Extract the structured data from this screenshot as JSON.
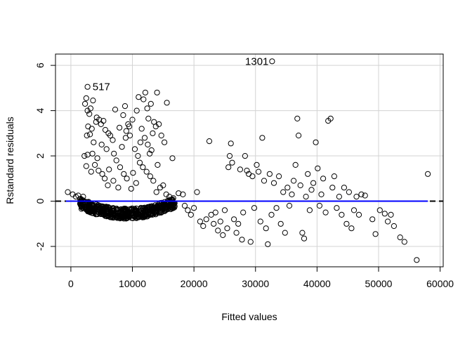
{
  "chart_data": {
    "type": "scatter",
    "title": "",
    "xlabel": "Fitted values",
    "ylabel": "Rstandard residuals",
    "xlim": [
      -2500,
      60500
    ],
    "ylim": [
      -2.9,
      6.5
    ],
    "x_ticks": [
      0,
      10000,
      20000,
      30000,
      40000,
      50000,
      60000
    ],
    "x_tick_labels": [
      "0",
      "10000",
      "20000",
      "30000",
      "40000",
      "50000",
      "60000"
    ],
    "y_ticks": [
      -2,
      0,
      2,
      4,
      6
    ],
    "y_tick_labels": [
      "-2",
      "0",
      "2",
      "4",
      "6"
    ],
    "grid": true,
    "reference_line": {
      "y": 0,
      "style": "dashed",
      "color": "#000000"
    },
    "smooth_line": {
      "color": "#0000ff",
      "y": 0
    },
    "annotations": [
      {
        "text": "517",
        "x": 2950,
        "y": 5.05
      },
      {
        "text": "1301",
        "x": 32700,
        "y": 6.18
      }
    ],
    "colors": {
      "points": "#000000",
      "smooth": "#0000ff",
      "grid": "#d3d3d3"
    },
    "series": [
      {
        "points": [
          [
            2700,
            5.05
          ],
          [
            32700,
            6.18
          ],
          [
            2300,
            4.3
          ],
          [
            2700,
            4.0
          ],
          [
            3200,
            4.1
          ],
          [
            3600,
            4.45
          ],
          [
            2500,
            4.55
          ],
          [
            3000,
            3.85
          ],
          [
            2800,
            3.3
          ],
          [
            3400,
            3.2
          ],
          [
            4200,
            3.7
          ],
          [
            2600,
            2.9
          ],
          [
            3100,
            2.95
          ],
          [
            3700,
            2.6
          ],
          [
            4100,
            3.5
          ],
          [
            4600,
            3.6
          ],
          [
            4900,
            3.4
          ],
          [
            5300,
            3.55
          ],
          [
            5600,
            3.15
          ],
          [
            6100,
            3.0
          ],
          [
            2200,
            2.0
          ],
          [
            2700,
            2.05
          ],
          [
            3500,
            2.1
          ],
          [
            4300,
            1.9
          ],
          [
            5000,
            2.5
          ],
          [
            5800,
            2.3
          ],
          [
            6400,
            2.9
          ],
          [
            6800,
            2.7
          ],
          [
            2500,
            1.55
          ],
          [
            3300,
            1.3
          ],
          [
            3900,
            1.6
          ],
          [
            4500,
            1.35
          ],
          [
            5100,
            1.2
          ],
          [
            5500,
            1.0
          ],
          [
            6200,
            1.4
          ],
          [
            7000,
            2.1
          ],
          [
            7400,
            1.8
          ],
          [
            8000,
            1.5
          ],
          [
            8600,
            1.2
          ],
          [
            9100,
            1.0
          ],
          [
            6000,
            0.7
          ],
          [
            6900,
            0.9
          ],
          [
            7700,
            0.6
          ],
          [
            8500,
            3.8
          ],
          [
            9000,
            3.1
          ],
          [
            9500,
            3.3
          ],
          [
            10000,
            3.6
          ],
          [
            9600,
            2.9
          ],
          [
            10400,
            2.3
          ],
          [
            10900,
            2.0
          ],
          [
            11300,
            2.6
          ],
          [
            11800,
            4.5
          ],
          [
            12100,
            4.8
          ],
          [
            11000,
            4.6
          ],
          [
            10700,
            4.0
          ],
          [
            12400,
            4.1
          ],
          [
            13000,
            4.3
          ],
          [
            13500,
            3.5
          ],
          [
            14000,
            4.8
          ],
          [
            11500,
            3.2
          ],
          [
            12000,
            2.8
          ],
          [
            12500,
            2.5
          ],
          [
            12800,
            2.1
          ],
          [
            13300,
            3.0
          ],
          [
            13800,
            3.3
          ],
          [
            14300,
            3.4
          ],
          [
            14700,
            2.9
          ],
          [
            15200,
            2.6
          ],
          [
            15600,
            4.35
          ],
          [
            16500,
            1.9
          ],
          [
            11200,
            1.7
          ],
          [
            11700,
            1.5
          ],
          [
            12300,
            1.3
          ],
          [
            12900,
            1.1
          ],
          [
            13400,
            0.9
          ],
          [
            10100,
            1.25
          ],
          [
            9800,
            0.55
          ],
          [
            10600,
            0.8
          ],
          [
            13900,
            0.4
          ],
          [
            14500,
            0.6
          ],
          [
            15000,
            0.7
          ],
          [
            15500,
            0.3
          ],
          [
            16000,
            0.2
          ],
          [
            7200,
            4.05
          ],
          [
            7900,
            3.25
          ],
          [
            8800,
            4.2
          ],
          [
            9300,
            3.4
          ],
          [
            12600,
            3.65
          ],
          [
            13100,
            2.25
          ],
          [
            14100,
            1.6
          ],
          [
            8300,
            2.4
          ],
          [
            8900,
            2.8
          ],
          [
            -500,
            0.4
          ],
          [
            300,
            0.3
          ],
          [
            800,
            0.2
          ],
          [
            1200,
            0.25
          ],
          [
            1500,
            0.1
          ],
          [
            1700,
            0.05
          ],
          [
            2000,
            0.2
          ],
          [
            17500,
            0.35
          ],
          [
            18200,
            0.3
          ],
          [
            18500,
            -0.2
          ],
          [
            19000,
            -0.4
          ],
          [
            19500,
            -0.6
          ],
          [
            20000,
            -0.3
          ],
          [
            20500,
            0.4
          ],
          [
            21000,
            -0.9
          ],
          [
            21500,
            -1.1
          ],
          [
            22000,
            -0.8
          ],
          [
            22500,
            2.65
          ],
          [
            22800,
            -0.6
          ],
          [
            23200,
            -1.0
          ],
          [
            23500,
            -0.5
          ],
          [
            23900,
            -1.3
          ],
          [
            24300,
            -0.9
          ],
          [
            24700,
            -1.5
          ],
          [
            25000,
            -0.4
          ],
          [
            25400,
            -1.2
          ],
          [
            25600,
            1.5
          ],
          [
            25800,
            2.0
          ],
          [
            26000,
            2.55
          ],
          [
            26200,
            1.7
          ],
          [
            26500,
            -0.8
          ],
          [
            26900,
            -1.4
          ],
          [
            27200,
            -1.0
          ],
          [
            27500,
            1.4
          ],
          [
            27800,
            -1.7
          ],
          [
            28000,
            -0.5
          ],
          [
            28300,
            2.0
          ],
          [
            28600,
            1.35
          ],
          [
            28900,
            1.2
          ],
          [
            29200,
            -1.8
          ],
          [
            29500,
            1.1
          ],
          [
            29800,
            -0.3
          ],
          [
            30200,
            1.6
          ],
          [
            30500,
            1.3
          ],
          [
            30800,
            -0.9
          ],
          [
            31100,
            2.8
          ],
          [
            31400,
            0.9
          ],
          [
            31700,
            -1.2
          ],
          [
            32000,
            -1.9
          ],
          [
            32300,
            1.2
          ],
          [
            32600,
            -0.6
          ],
          [
            33000,
            0.8
          ],
          [
            33400,
            -0.3
          ],
          [
            33800,
            1.1
          ],
          [
            34100,
            -1.0
          ],
          [
            34500,
            0.4
          ],
          [
            34800,
            -1.4
          ],
          [
            35200,
            0.6
          ],
          [
            35500,
            -0.2
          ],
          [
            35900,
            0.3
          ],
          [
            36200,
            0.9
          ],
          [
            36500,
            1.6
          ],
          [
            36800,
            3.65
          ],
          [
            37000,
            2.9
          ],
          [
            37300,
            0.7
          ],
          [
            37600,
            -1.4
          ],
          [
            37900,
            -1.65
          ],
          [
            38200,
            0.2
          ],
          [
            38500,
            1.2
          ],
          [
            38800,
            -0.4
          ],
          [
            39100,
            0.5
          ],
          [
            39400,
            0.8
          ],
          [
            39800,
            2.6
          ],
          [
            40100,
            1.45
          ],
          [
            40400,
            -0.2
          ],
          [
            40700,
            0.3
          ],
          [
            41000,
            1.0
          ],
          [
            41400,
            -0.5
          ],
          [
            41800,
            3.55
          ],
          [
            42200,
            3.65
          ],
          [
            42500,
            0.6
          ],
          [
            42800,
            1.1
          ],
          [
            43200,
            -0.3
          ],
          [
            43600,
            0.2
          ],
          [
            44000,
            -0.6
          ],
          [
            44400,
            0.6
          ],
          [
            44800,
            -1.0
          ],
          [
            45200,
            0.4
          ],
          [
            45600,
            -1.2
          ],
          [
            46000,
            -0.4
          ],
          [
            46400,
            0.2
          ],
          [
            46800,
            -0.6
          ],
          [
            47200,
            0.3
          ],
          [
            47800,
            0.25
          ],
          [
            49000,
            -0.8
          ],
          [
            49500,
            -1.45
          ],
          [
            50200,
            -0.4
          ],
          [
            51000,
            -0.55
          ],
          [
            51500,
            -0.9
          ],
          [
            52000,
            -0.6
          ],
          [
            52500,
            -1.1
          ],
          [
            53500,
            -1.6
          ],
          [
            54200,
            -1.8
          ],
          [
            56200,
            -2.6
          ],
          [
            58000,
            1.2
          ]
        ]
      }
    ]
  }
}
